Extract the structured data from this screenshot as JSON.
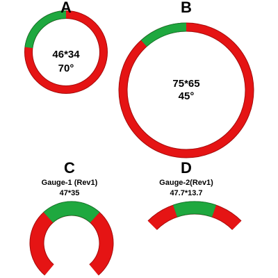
{
  "gauges": [
    {
      "letter": "A",
      "size": "46*34",
      "angle": "70°"
    },
    {
      "letter": "B",
      "size": "75*65",
      "angle": "45°"
    },
    {
      "letter": "C",
      "name": "Gauge-1 (Rev1)",
      "size": "47*35"
    },
    {
      "letter": "D",
      "name": "Gauge-2(Rev1)",
      "size": "47.7*13.7"
    }
  ]
}
